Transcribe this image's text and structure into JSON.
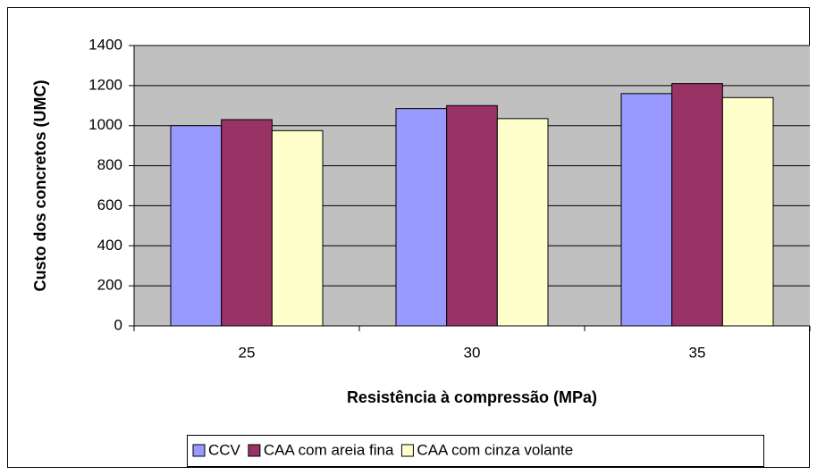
{
  "chart_data": {
    "type": "bar",
    "categories": [
      "25",
      "30",
      "35"
    ],
    "series": [
      {
        "name": "CCV",
        "color": "#9999ff",
        "values": [
          1000,
          1085,
          1160
        ]
      },
      {
        "name": "CAA com areia fina",
        "color": "#993366",
        "values": [
          1030,
          1100,
          1210
        ]
      },
      {
        "name": "CAA com cinza volante",
        "color": "#ffffcc",
        "values": [
          975,
          1035,
          1140
        ]
      }
    ],
    "x_label": "Resistência à compressão (MPa)",
    "y_label": "Custo dos concretos (UMC)",
    "ylim": [
      0,
      1400
    ],
    "yticks": [
      0,
      200,
      400,
      600,
      800,
      1000,
      1200,
      1400
    ],
    "grid": true,
    "legend": "bottom",
    "plot_background": "#c0c0c0"
  }
}
